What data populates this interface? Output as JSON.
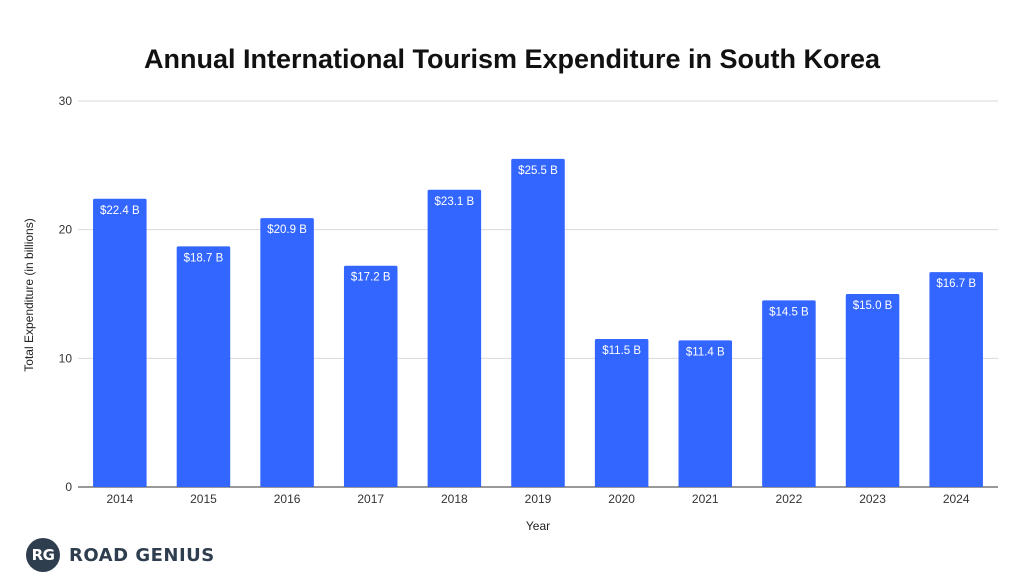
{
  "chart_data": {
    "type": "bar",
    "title": "Annual International Tourism Expenditure in South Korea",
    "xlabel": "Year",
    "ylabel": "Total Expenditure (in billions)",
    "categories": [
      "2014",
      "2015",
      "2016",
      "2017",
      "2018",
      "2019",
      "2020",
      "2021",
      "2022",
      "2023",
      "2024"
    ],
    "values": [
      22.4,
      18.7,
      20.9,
      17.2,
      23.1,
      25.5,
      11.5,
      11.4,
      14.5,
      15.0,
      16.7
    ],
    "data_labels": [
      "$22.4 B",
      "$18.7 B",
      "$20.9 B",
      "$17.2 B",
      "$23.1 B",
      "$25.5 B",
      "$11.5 B",
      "$11.4 B",
      "$14.5 B",
      "$15.0 B",
      "$16.7 B"
    ],
    "ylim": [
      0,
      30
    ],
    "yticks": [
      0,
      10,
      20,
      30
    ],
    "grid": true,
    "legend": "none",
    "bar_color": "#3366ff"
  },
  "branding": {
    "badge": "RG",
    "name": "ROAD GENIUS"
  }
}
